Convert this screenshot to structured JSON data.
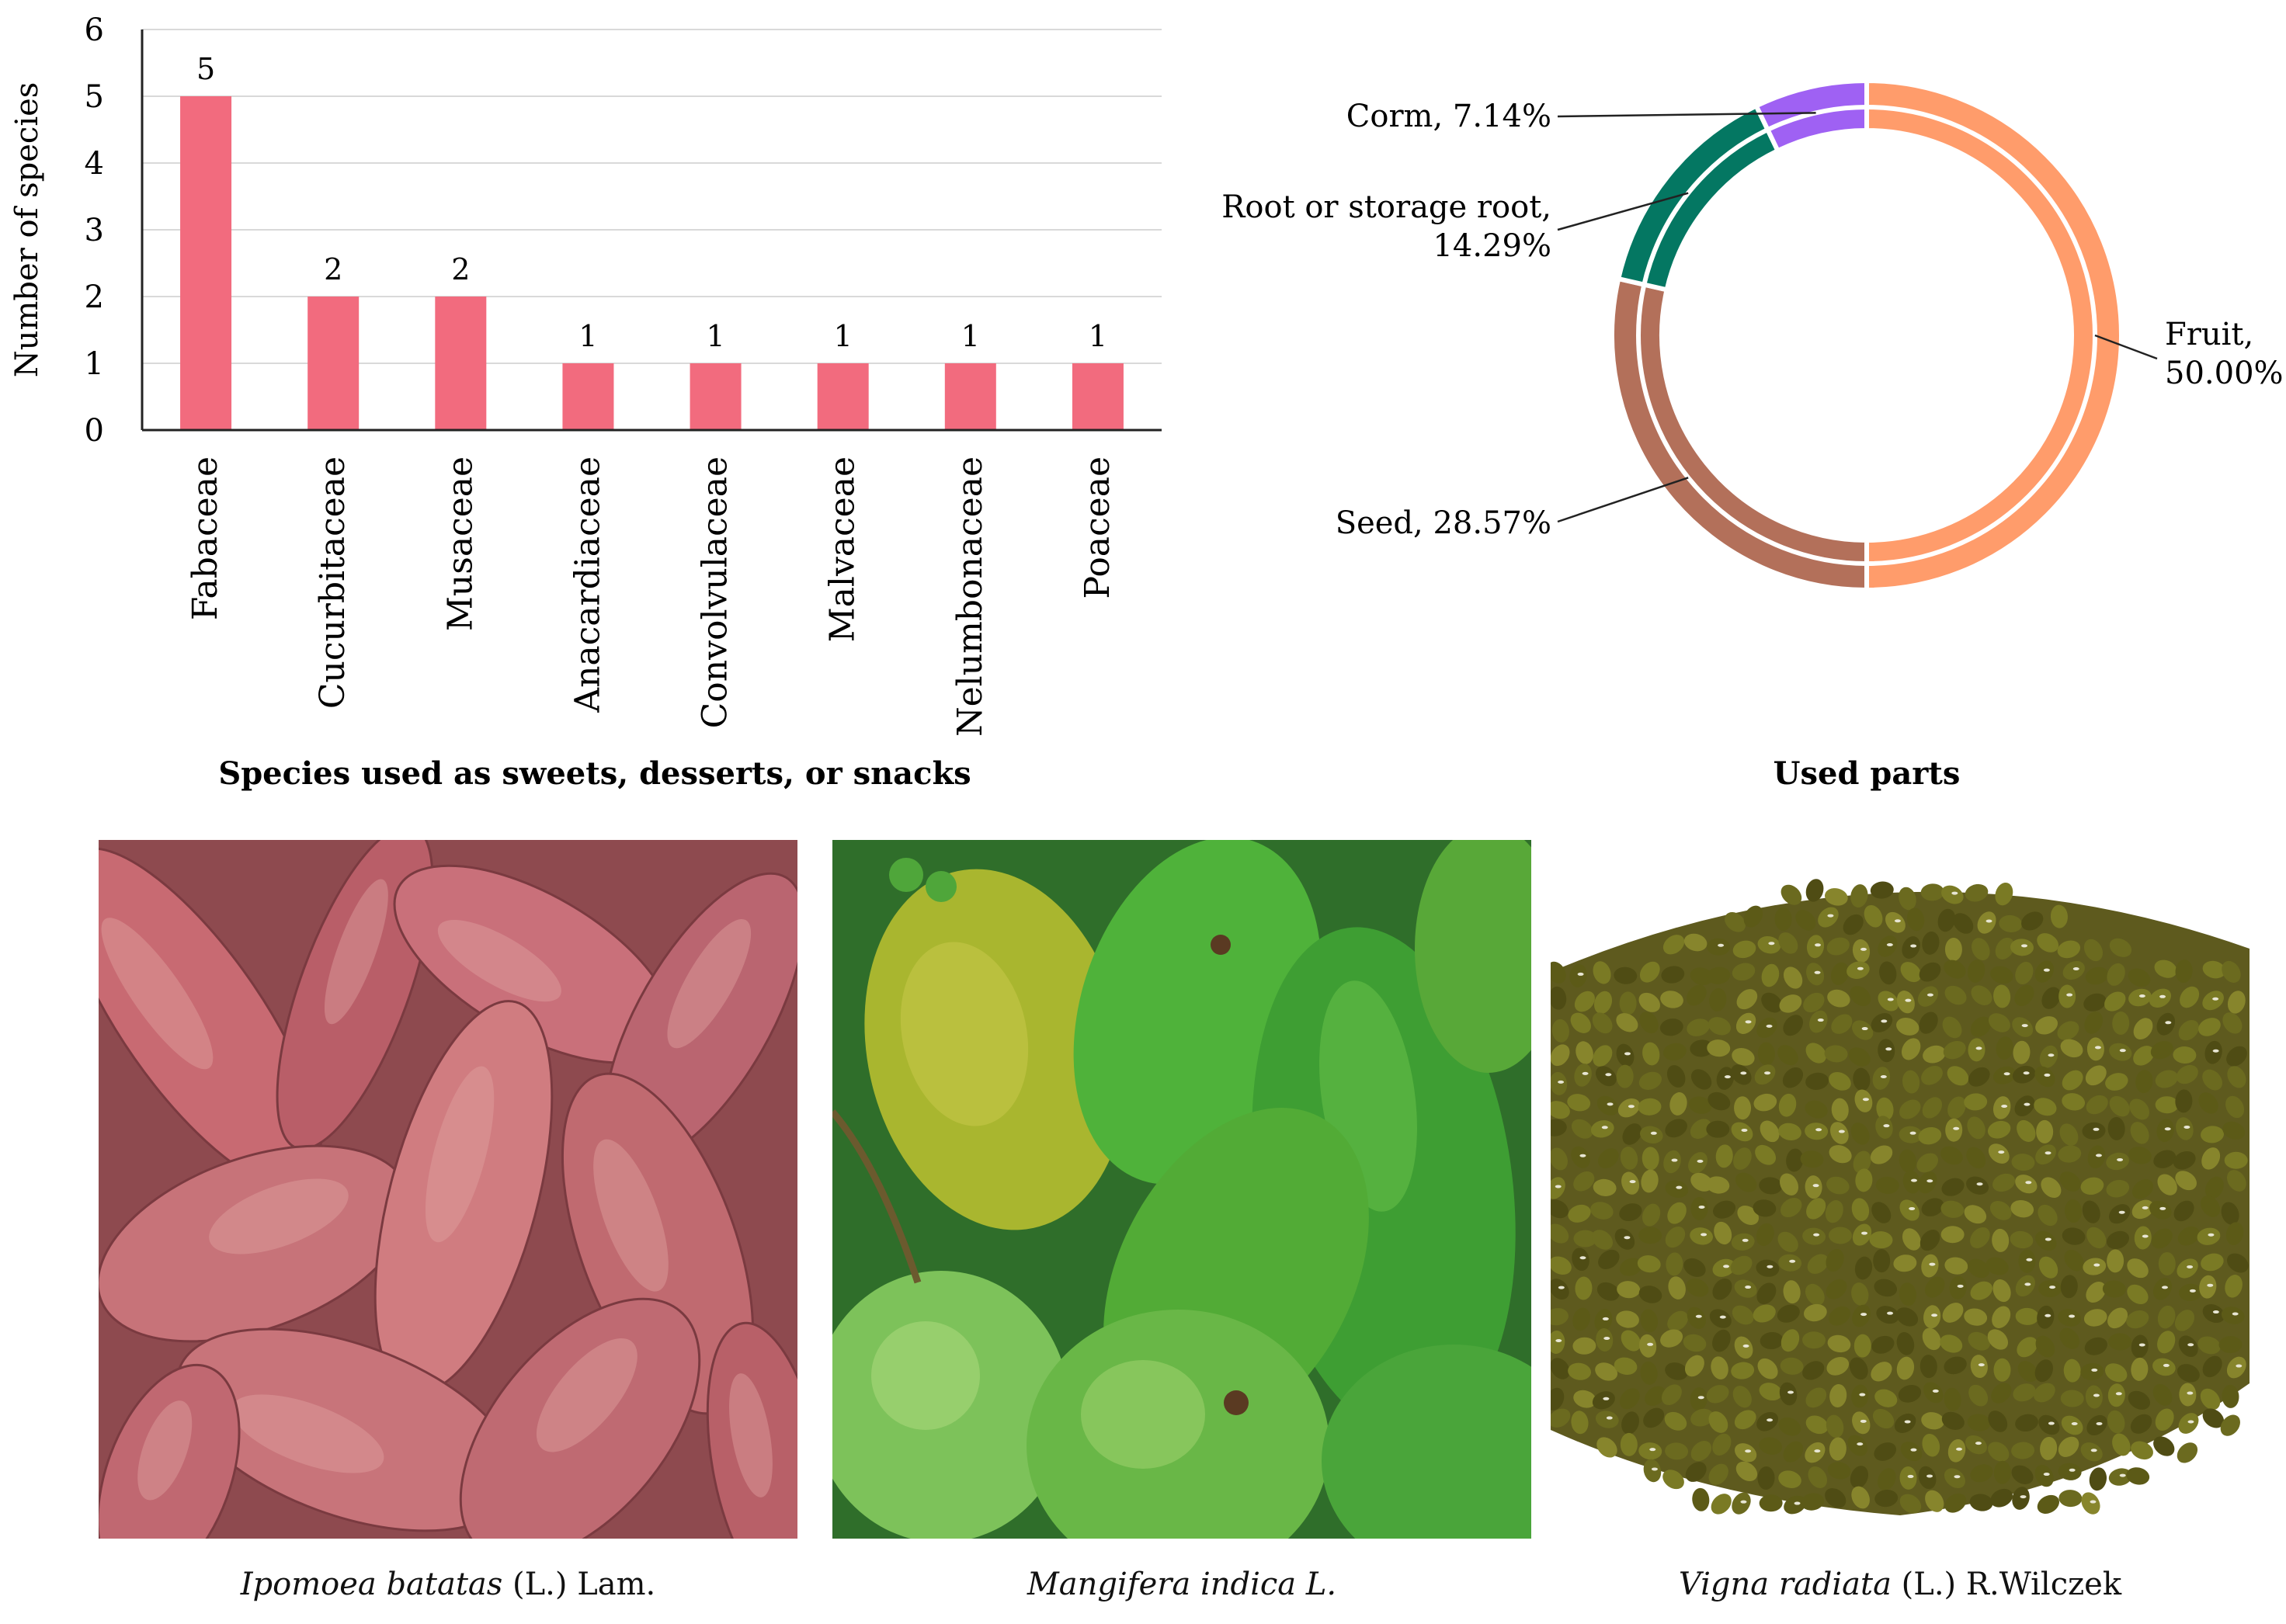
{
  "chart_data": [
    {
      "type": "bar",
      "title": "Species used as sweets, desserts, or snacks",
      "ylabel": "Number of species",
      "ylim": [
        0,
        6
      ],
      "yticks": [
        0,
        1,
        2,
        3,
        4,
        5,
        6
      ],
      "grid": true,
      "categories": [
        "Fabaceae",
        "Cucurbitaceae",
        "Musaceae",
        "Anacardiaceae",
        "Convolvulaceae",
        "Malvaceae",
        "Nelumbonaceae",
        "Poaceae"
      ],
      "values": [
        5,
        2,
        2,
        1,
        1,
        1,
        1,
        1
      ],
      "data_labels": [
        "5",
        "2",
        "2",
        "1",
        "1",
        "1",
        "1",
        "1"
      ],
      "color": "#F26B7E"
    },
    {
      "type": "pie",
      "variant": "donut",
      "title": "Used parts",
      "slices": [
        {
          "label_lines": [
            "Fruit,",
            "50.00%"
          ],
          "value": 50.0,
          "color": "#FF9C6B"
        },
        {
          "label_lines": [
            "Seed, 28.57%"
          ],
          "value": 28.57,
          "color": "#B3705A"
        },
        {
          "label_lines": [
            "Root or storage root,",
            "14.29%"
          ],
          "value": 14.29,
          "color": "#047762"
        },
        {
          "label_lines": [
            "Corm, 7.14%"
          ],
          "value": 7.14,
          "color": "#9F61F3"
        }
      ]
    }
  ],
  "photos": [
    {
      "scientific": "Ipomoea batatas",
      "author": " (L.) Lam.",
      "description_icon": "sweet-potato-photo"
    },
    {
      "scientific": "Mangifera indica L.",
      "author": "",
      "description_icon": "mango-photo"
    },
    {
      "scientific": "Vigna radiata",
      "author": " (L.) R.Wilczek",
      "description_icon": "mung-bean-photo"
    }
  ]
}
